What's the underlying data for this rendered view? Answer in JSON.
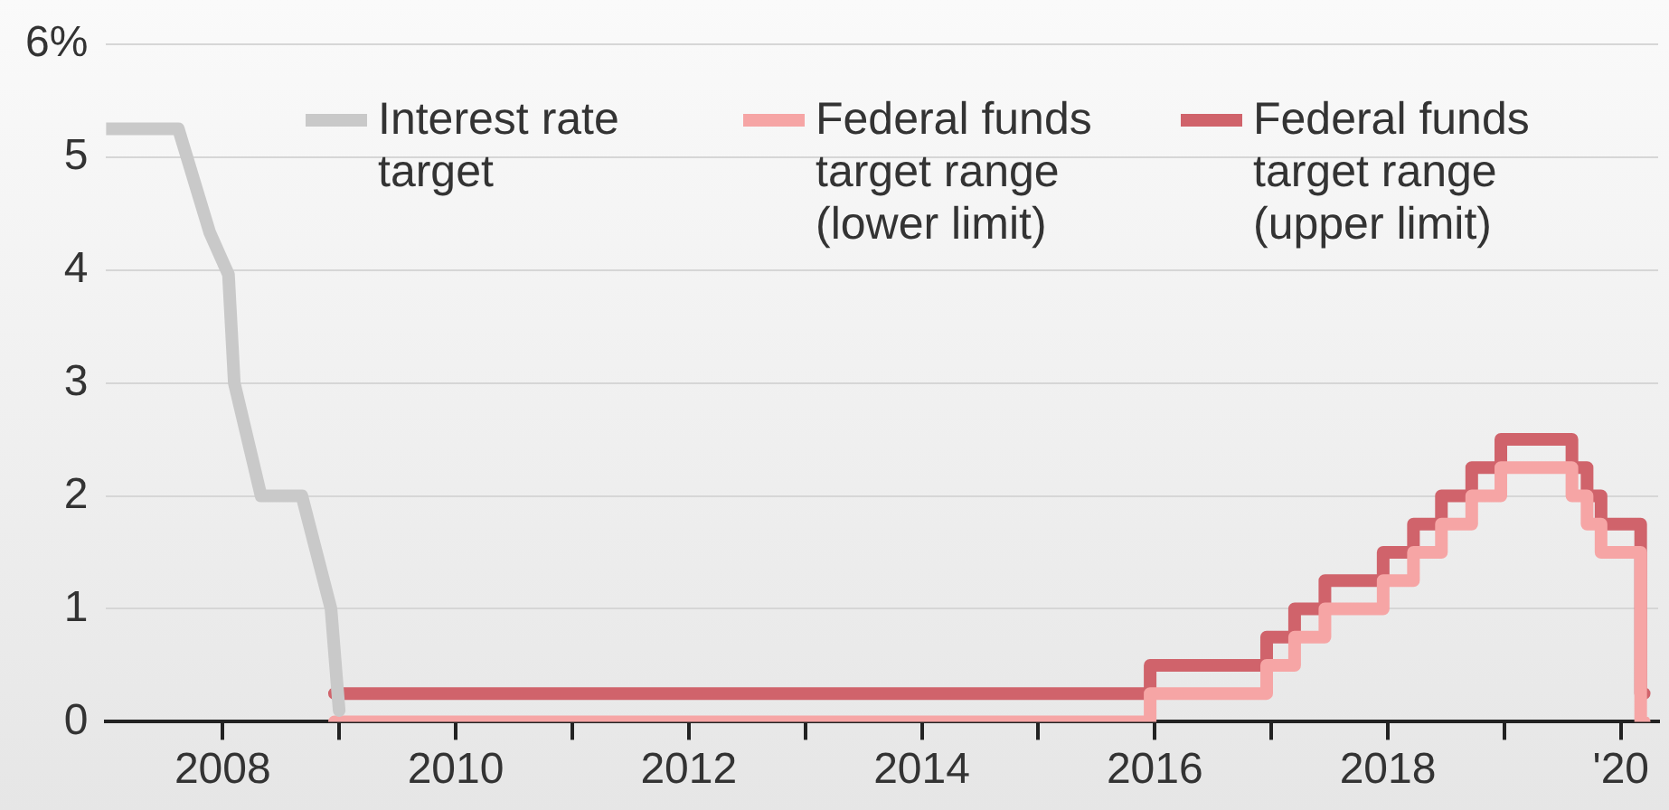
{
  "chart_data": {
    "type": "step",
    "xlim": [
      2007,
      2020.32
    ],
    "xticks": [
      2008,
      {
        "value": 2009,
        "label": null
      },
      2010,
      {
        "value": 2011,
        "label": null
      },
      2012,
      {
        "value": 2013,
        "label": null
      },
      2014,
      {
        "value": 2015,
        "label": null
      },
      2016,
      {
        "value": 2017,
        "label": null
      },
      2018,
      {
        "value": 2019,
        "label": null
      },
      {
        "value": 2020,
        "label": "'20"
      }
    ],
    "ylim": [
      0,
      6
    ],
    "yticks": [
      0,
      1,
      2,
      3,
      4,
      5,
      {
        "value": 6,
        "label": "6%"
      }
    ],
    "grid": "y",
    "legend": "top",
    "series": [
      {
        "name": "Interest rate target",
        "type": "line",
        "color": "#c9c9c9",
        "x": [
          2007,
          2007.62,
          2007.89,
          2008.05,
          2008.1,
          2008.33,
          2008.68,
          2008.93,
          2009.0
        ],
        "values": [
          5.25,
          5.25,
          4.33,
          3.96,
          3.0,
          2.0,
          2.0,
          1.0,
          0.1
        ]
      },
      {
        "name": "Federal funds target range (lower limit)",
        "color": "#f6a5a5",
        "x": [
          2008.96,
          2015.96,
          2016.96,
          2017.2,
          2017.46,
          2017.96,
          2018.22,
          2018.46,
          2018.72,
          2018.97,
          2019.58,
          2019.71,
          2019.83,
          2020.17,
          2020.2
        ],
        "values": [
          0,
          0.25,
          0.5,
          0.75,
          1.0,
          1.25,
          1.5,
          1.75,
          2.0,
          2.25,
          2.0,
          1.75,
          1.5,
          0,
          0
        ]
      },
      {
        "name": "Federal funds target range (upper limit)",
        "color": "#d0636b",
        "x": [
          2008.96,
          2015.96,
          2016.96,
          2017.2,
          2017.46,
          2017.96,
          2018.22,
          2018.46,
          2018.72,
          2018.97,
          2019.58,
          2019.71,
          2019.83,
          2020.17,
          2020.2
        ],
        "values": [
          0.25,
          0.5,
          0.75,
          1.0,
          1.25,
          1.5,
          1.75,
          2.0,
          2.25,
          2.5,
          2.25,
          2.0,
          1.75,
          0.25,
          0.25
        ]
      }
    ]
  }
}
